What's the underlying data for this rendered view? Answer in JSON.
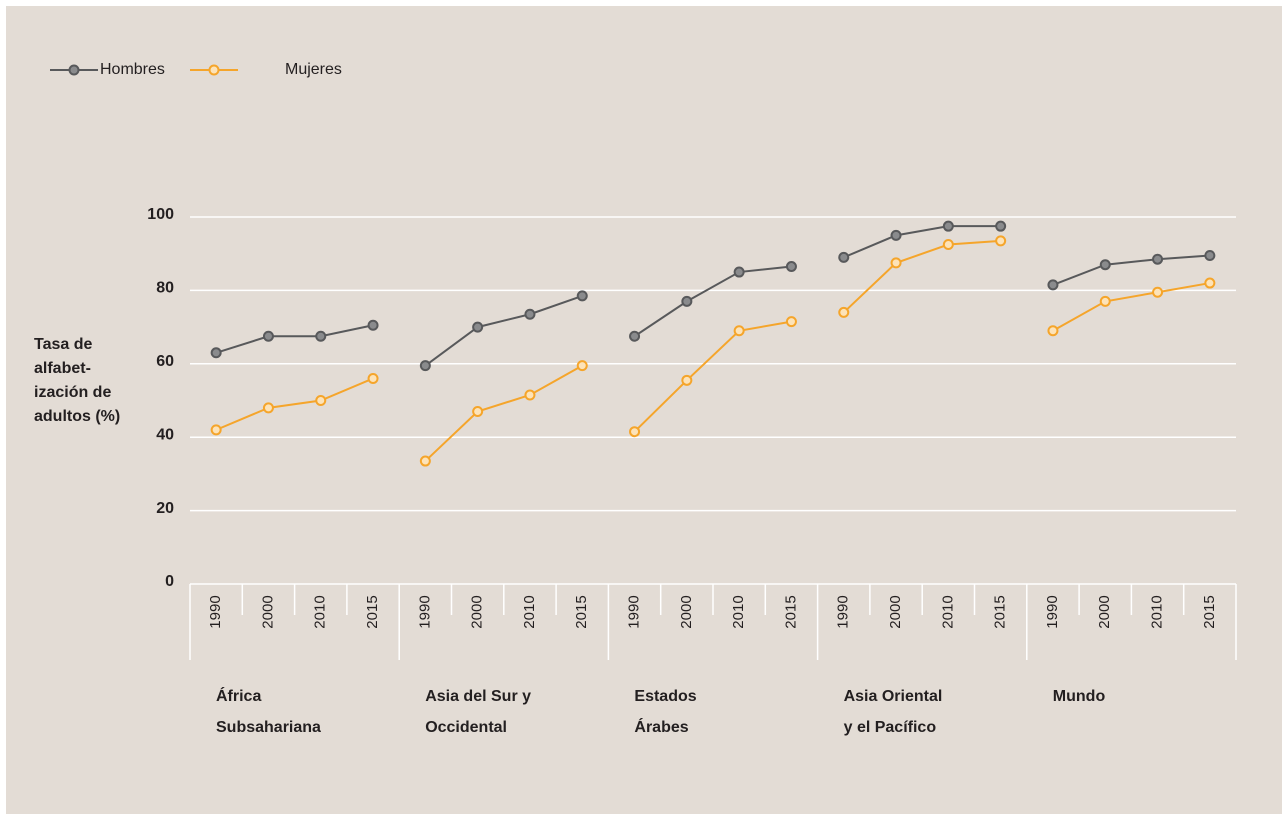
{
  "chart_data": {
    "type": "line",
    "y_label": [
      "Tasa de",
      "alfabet-",
      "ización de",
      "adultos  (%)"
    ],
    "groups": [
      {
        "label": [
          "África",
          "Subsahariana"
        ],
        "categories": [
          "1990",
          "2000",
          "2010",
          "2015"
        ]
      },
      {
        "label": [
          "Asia del Sur y",
          "Occidental"
        ],
        "categories": [
          "1990",
          "2000",
          "2010",
          "2015"
        ]
      },
      {
        "label": [
          "Estados",
          "Árabes"
        ],
        "categories": [
          "1990",
          "2000",
          "2010",
          "2015"
        ]
      },
      {
        "label": [
          "Asia Oriental",
          "y el Pacífico"
        ],
        "categories": [
          "1990",
          "2000",
          "2010",
          "2015"
        ]
      },
      {
        "label": [
          "Mundo"
        ],
        "categories": [
          "1990",
          "2000",
          "2010",
          "2015"
        ]
      }
    ],
    "series": [
      {
        "name": "Hombres",
        "color": "#58595b",
        "marker_fill": "#8a8b8d",
        "values": [
          [
            63,
            67.5,
            67.5,
            70.5
          ],
          [
            59.5,
            70,
            73.5,
            78.5
          ],
          [
            67.5,
            77,
            85,
            86.5
          ],
          [
            89,
            95,
            97.5,
            97.5
          ],
          [
            81.5,
            87,
            88.5,
            89.5
          ]
        ]
      },
      {
        "name": "Mujeres",
        "color": "#f5a52b",
        "marker_fill": "#fde3b8",
        "values": [
          [
            42,
            48,
            50,
            56
          ],
          [
            33.5,
            47,
            51.5,
            59.5
          ],
          [
            41.5,
            55.5,
            69,
            71.5
          ],
          [
            74,
            87.5,
            92.5,
            93.5
          ],
          [
            69,
            77,
            79.5,
            82
          ]
        ]
      }
    ],
    "ylim": [
      0,
      100
    ],
    "yticks": [
      0,
      20,
      40,
      60,
      80,
      100
    ],
    "grid": true,
    "legend": "top-left"
  }
}
